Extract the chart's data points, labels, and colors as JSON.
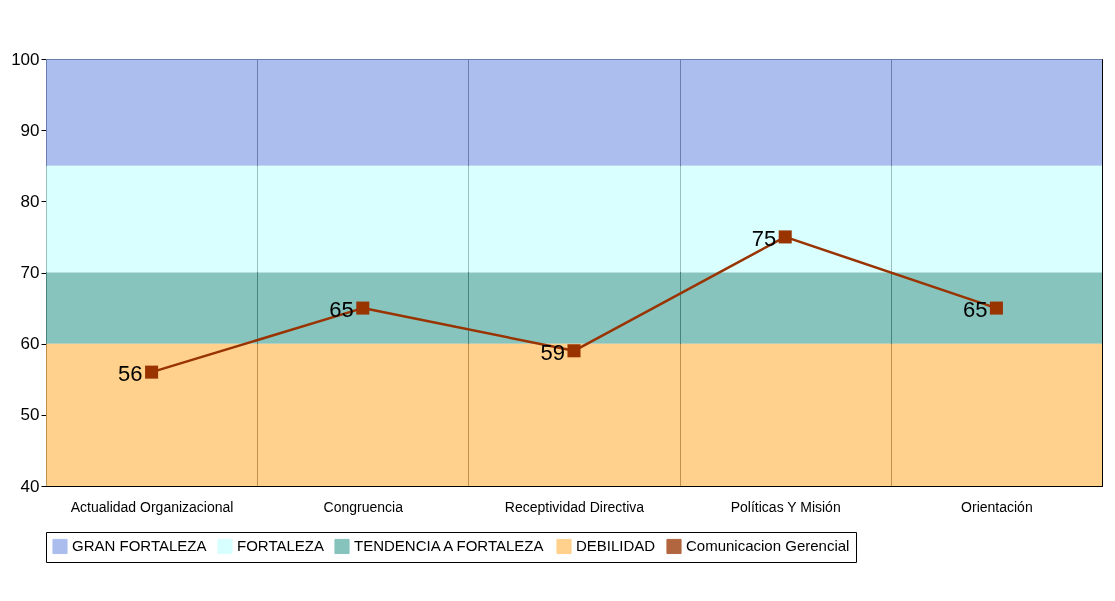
{
  "chart_data": {
    "type": "line",
    "categories": [
      "Actualidad Organizacional",
      "Congruencia",
      "Receptividad Directiva",
      "Políticas Y Misión",
      "Orientación"
    ],
    "series": [
      {
        "name": "Comunicacion Gerencial",
        "color": "#993300",
        "values": [
          56,
          65,
          59,
          75,
          65
        ]
      }
    ],
    "bands": [
      {
        "axis": "y",
        "from": 85,
        "to": 100,
        "label": "GRAN FORTALEZA",
        "color": "#8fa8e8"
      },
      {
        "axis": "y",
        "from": 70,
        "to": 85,
        "label": "FORTALEZA",
        "color": "#ccffff"
      },
      {
        "axis": "y",
        "from": 60,
        "to": 70,
        "label": "TENDENCIA A FORTALEZA",
        "color": "#5fb0a8"
      },
      {
        "axis": "y",
        "from": 40,
        "to": 60,
        "label": "DEBILIDAD",
        "color": "#ffc266"
      }
    ],
    "ylim": [
      40,
      100
    ],
    "yticks": [
      40,
      50,
      60,
      70,
      80,
      90,
      100
    ],
    "grid": "x",
    "legend": "bottom",
    "marker": "square",
    "line_style": "solid",
    "data_labels": true
  }
}
